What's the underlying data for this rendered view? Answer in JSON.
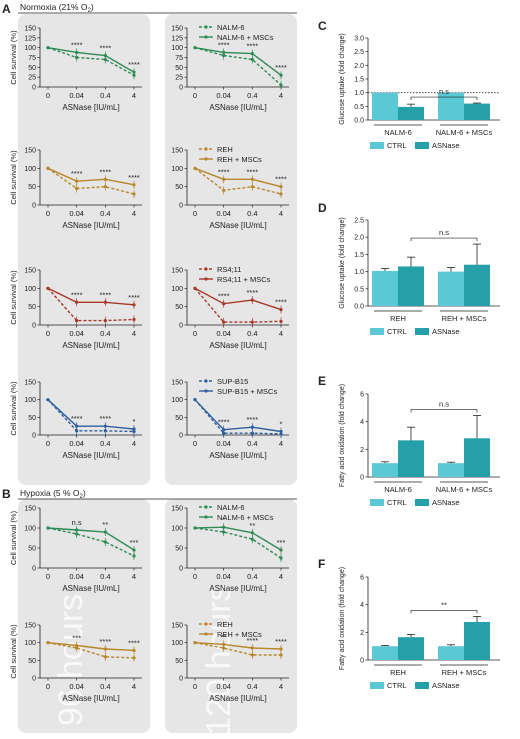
{
  "panel_letters": {
    "A": "A",
    "B": "B",
    "C": "C",
    "D": "D",
    "E": "E",
    "F": "F"
  },
  "conditions": {
    "normoxia": {
      "pre": "Normoxia (21% O",
      "sub": "2",
      "post": ")"
    },
    "hypoxia": {
      "pre": "Hypoxia (5 % O",
      "sub": "2",
      "post": ")"
    }
  },
  "watermarks": {
    "left": "96 hours",
    "right": "120 hours"
  },
  "colors": {
    "green": "#2e8b57",
    "gold": "#b8862b",
    "red": "#a8382a",
    "blue": "#2f5e9e",
    "ctrl": "#5bc8d6",
    "asnase": "#26a0a8",
    "bg_panel": "#e6e6e6"
  },
  "chart_data": [
    {
      "id": "A1",
      "type": "line",
      "xlabel": "ASNase [IU/mL]",
      "ylabel": "Cell survival (%)",
      "ylim": [
        0,
        150
      ],
      "yticks": [
        0,
        25,
        50,
        75,
        100,
        125,
        150
      ],
      "categories": [
        "0",
        "0.04",
        "0.4",
        "4"
      ],
      "color": "green",
      "legend": [],
      "series": [
        {
          "values": [
            100,
            75,
            70,
            30
          ],
          "dashed": true
        },
        {
          "values": [
            100,
            88,
            80,
            38
          ],
          "dashed": false
        }
      ],
      "sig": [
        "",
        "****",
        "****",
        "****"
      ]
    },
    {
      "id": "A2",
      "type": "line",
      "xlabel": "ASNase [IU/mL]",
      "ylabel": "",
      "ylim": [
        0,
        150
      ],
      "yticks": [
        0,
        25,
        50,
        75,
        100,
        125,
        150
      ],
      "categories": [
        "0",
        "0.04",
        "0.4",
        "4"
      ],
      "color": "green",
      "legend": [
        "NALM-6",
        "NALM-6 + MSCs"
      ],
      "series": [
        {
          "values": [
            100,
            80,
            70,
            5
          ],
          "dashed": true
        },
        {
          "values": [
            100,
            88,
            85,
            30
          ],
          "dashed": false
        }
      ],
      "sig": [
        "",
        "****",
        "****",
        "****"
      ]
    },
    {
      "id": "A3",
      "type": "line",
      "xlabel": "ASNase [IU/mL]",
      "ylabel": "Cell survival (%)",
      "ylim": [
        0,
        150
      ],
      "yticks": [
        0,
        50,
        100,
        150
      ],
      "categories": [
        "0",
        "0.04",
        "0.4",
        "4"
      ],
      "color": "gold",
      "legend": [],
      "series": [
        {
          "values": [
            100,
            45,
            50,
            30
          ],
          "dashed": true
        },
        {
          "values": [
            100,
            65,
            70,
            55
          ],
          "dashed": false
        }
      ],
      "sig": [
        "",
        "****",
        "****",
        "****"
      ]
    },
    {
      "id": "A4",
      "type": "line",
      "xlabel": "ASNase [IU/mL]",
      "ylabel": "",
      "ylim": [
        0,
        150
      ],
      "yticks": [
        0,
        50,
        100,
        150
      ],
      "categories": [
        "0",
        "0.04",
        "0.4",
        "4"
      ],
      "color": "gold",
      "legend": [
        "REH",
        "REH + MSCs"
      ],
      "series": [
        {
          "values": [
            100,
            40,
            50,
            30
          ],
          "dashed": true
        },
        {
          "values": [
            100,
            70,
            70,
            50
          ],
          "dashed": false
        }
      ],
      "sig": [
        "",
        "****",
        "****",
        "****"
      ]
    },
    {
      "id": "A5",
      "type": "line",
      "xlabel": "ASNase [IU/mL]",
      "ylabel": "Cell survival (%)",
      "ylim": [
        0,
        150
      ],
      "yticks": [
        0,
        50,
        100,
        150
      ],
      "categories": [
        "0",
        "0.04",
        "0.4",
        "4"
      ],
      "color": "red",
      "legend": [],
      "series": [
        {
          "values": [
            100,
            12,
            12,
            15
          ],
          "dashed": true
        },
        {
          "values": [
            100,
            62,
            62,
            55
          ],
          "dashed": false
        }
      ],
      "sig": [
        "",
        "****",
        "****",
        "****"
      ]
    },
    {
      "id": "A6",
      "type": "line",
      "xlabel": "ASNase [IU/mL]",
      "ylabel": "",
      "ylim": [
        0,
        150
      ],
      "yticks": [
        0,
        50,
        100,
        150
      ],
      "categories": [
        "0",
        "0.04",
        "0.4",
        "4"
      ],
      "color": "red",
      "legend": [
        "RS4;11",
        "RS4;11 + MSCs"
      ],
      "series": [
        {
          "values": [
            100,
            8,
            8,
            10
          ],
          "dashed": true
        },
        {
          "values": [
            100,
            58,
            68,
            42
          ],
          "dashed": false
        }
      ],
      "sig": [
        "",
        "****",
        "****",
        "****"
      ]
    },
    {
      "id": "A7",
      "type": "line",
      "xlabel": "ASNase [IU/mL]",
      "ylabel": "Cell survival (%)",
      "ylim": [
        0,
        150
      ],
      "yticks": [
        0,
        50,
        100,
        150
      ],
      "categories": [
        "0",
        "0.04",
        "0.4",
        "4"
      ],
      "color": "blue",
      "legend": [],
      "series": [
        {
          "values": [
            100,
            12,
            12,
            10
          ],
          "dashed": true
        },
        {
          "values": [
            100,
            25,
            25,
            17
          ],
          "dashed": false
        }
      ],
      "sig": [
        "",
        "****",
        "****",
        "*"
      ]
    },
    {
      "id": "A8",
      "type": "line",
      "xlabel": "ASNase [IU/mL]",
      "ylabel": "",
      "ylim": [
        0,
        150
      ],
      "yticks": [
        0,
        50,
        100,
        150
      ],
      "categories": [
        "0",
        "0.04",
        "0.4",
        "4"
      ],
      "color": "blue",
      "legend": [
        "SUP-B15",
        "SUP-B15 + MSCs"
      ],
      "series": [
        {
          "values": [
            100,
            5,
            5,
            3
          ],
          "dashed": true
        },
        {
          "values": [
            100,
            15,
            22,
            10
          ],
          "dashed": false
        }
      ],
      "sig": [
        "",
        "****",
        "****",
        "*"
      ]
    },
    {
      "id": "B1",
      "type": "line",
      "xlabel": "ASNase [IU/mL]",
      "ylabel": "Cell survival (%)",
      "ylim": [
        0,
        150
      ],
      "yticks": [
        0,
        50,
        100,
        150
      ],
      "categories": [
        "0",
        "0.04",
        "0.4",
        "4"
      ],
      "color": "green",
      "legend": [],
      "series": [
        {
          "values": [
            100,
            85,
            65,
            30
          ],
          "dashed": true
        },
        {
          "values": [
            100,
            95,
            90,
            45
          ],
          "dashed": false
        }
      ],
      "sig": [
        "",
        "n.s",
        "**",
        "***"
      ]
    },
    {
      "id": "B2",
      "type": "line",
      "xlabel": "ASNase [IU/mL]",
      "ylabel": "",
      "ylim": [
        0,
        150
      ],
      "yticks": [
        0,
        50,
        100,
        150
      ],
      "categories": [
        "0",
        "0.04",
        "0.4",
        "4"
      ],
      "color": "green",
      "legend": [
        "NALM-6",
        "NALM-6 + MSCs"
      ],
      "series": [
        {
          "values": [
            100,
            90,
            72,
            25
          ],
          "dashed": true
        },
        {
          "values": [
            100,
            102,
            88,
            45
          ],
          "dashed": false
        }
      ],
      "sig": [
        "",
        "*",
        "**",
        "***"
      ]
    },
    {
      "id": "B3",
      "type": "line",
      "xlabel": "ASNase [IU/mL]",
      "ylabel": "Cell survival (%)",
      "ylim": [
        0,
        150
      ],
      "yticks": [
        0,
        50,
        100,
        150
      ],
      "categories": [
        "0",
        "0.04",
        "0.4",
        "4"
      ],
      "color": "gold",
      "legend": [],
      "series": [
        {
          "values": [
            100,
            85,
            60,
            57
          ],
          "dashed": true
        },
        {
          "values": [
            100,
            92,
            82,
            78
          ],
          "dashed": false
        }
      ],
      "sig": [
        "",
        "***",
        "****",
        "****"
      ]
    },
    {
      "id": "B4",
      "type": "line",
      "xlabel": "ASNase [IU/mL]",
      "ylabel": "",
      "ylim": [
        0,
        150
      ],
      "yticks": [
        0,
        50,
        100,
        150
      ],
      "categories": [
        "0",
        "0.04",
        "0.4",
        "4"
      ],
      "color": "gold",
      "legend": [
        "REH",
        "REH + MSCs"
      ],
      "series": [
        {
          "values": [
            100,
            85,
            65,
            65
          ],
          "dashed": true
        },
        {
          "values": [
            100,
            95,
            85,
            82
          ],
          "dashed": false
        }
      ],
      "sig": [
        "",
        "**",
        "****",
        "****"
      ]
    },
    {
      "id": "C",
      "type": "bar",
      "ylabel": "Glucose uptake (fold change)",
      "ylim": [
        0,
        3
      ],
      "yticks": [
        "0.0",
        "0.5",
        "1.0",
        "1.5",
        "2.0",
        "2.5",
        "3.0"
      ],
      "refline": 1,
      "groups": [
        "NALM-6",
        "NALM-6 + MSCs"
      ],
      "legend": [
        "CTRL",
        "ASNase"
      ],
      "values": [
        [
          1.0,
          0.48
        ],
        [
          1.0,
          0.6
        ]
      ],
      "errors": [
        [
          0,
          0.1
        ],
        [
          0,
          0.02
        ]
      ],
      "sig": "n.s"
    },
    {
      "id": "D",
      "type": "bar",
      "ylabel": "Glucose uptake (fold change)",
      "ylim": [
        0,
        2.5
      ],
      "yticks": [
        "0.0",
        "0.5",
        "1.0",
        "1.5",
        "2.0",
        "2.5"
      ],
      "groups": [
        "REH",
        "REH + MSCs"
      ],
      "legend": [
        "CTRL",
        "ASNase"
      ],
      "values": [
        [
          1.02,
          1.15
        ],
        [
          1.0,
          1.2
        ]
      ],
      "errors": [
        [
          0.07,
          0.27
        ],
        [
          0.12,
          0.6
        ]
      ],
      "sig": "n.s"
    },
    {
      "id": "E",
      "type": "bar",
      "ylabel": "Fatty acid oxidation (fold change)",
      "ylim": [
        0,
        6
      ],
      "yticks": [
        "0",
        "2",
        "4",
        "6"
      ],
      "groups": [
        "NALM-6",
        "NALM-6 + MSCs"
      ],
      "legend": [
        "CTRL",
        "ASNase"
      ],
      "values": [
        [
          1.0,
          2.65
        ],
        [
          1.0,
          2.8
        ]
      ],
      "errors": [
        [
          0.1,
          0.95
        ],
        [
          0.07,
          1.65
        ]
      ],
      "sig": "n.s"
    },
    {
      "id": "F",
      "type": "bar",
      "ylabel": "Fatty acid oxidation (fold change)",
      "ylim": [
        0,
        6
      ],
      "yticks": [
        "0",
        "2",
        "4",
        "6"
      ],
      "groups": [
        "REH",
        "REH + MSCs"
      ],
      "legend": [
        "CTRL",
        "ASNase"
      ],
      "values": [
        [
          1.0,
          1.65
        ],
        [
          1.0,
          2.75
        ]
      ],
      "errors": [
        [
          0.05,
          0.2
        ],
        [
          0.1,
          0.4
        ]
      ],
      "sig": "**"
    }
  ]
}
